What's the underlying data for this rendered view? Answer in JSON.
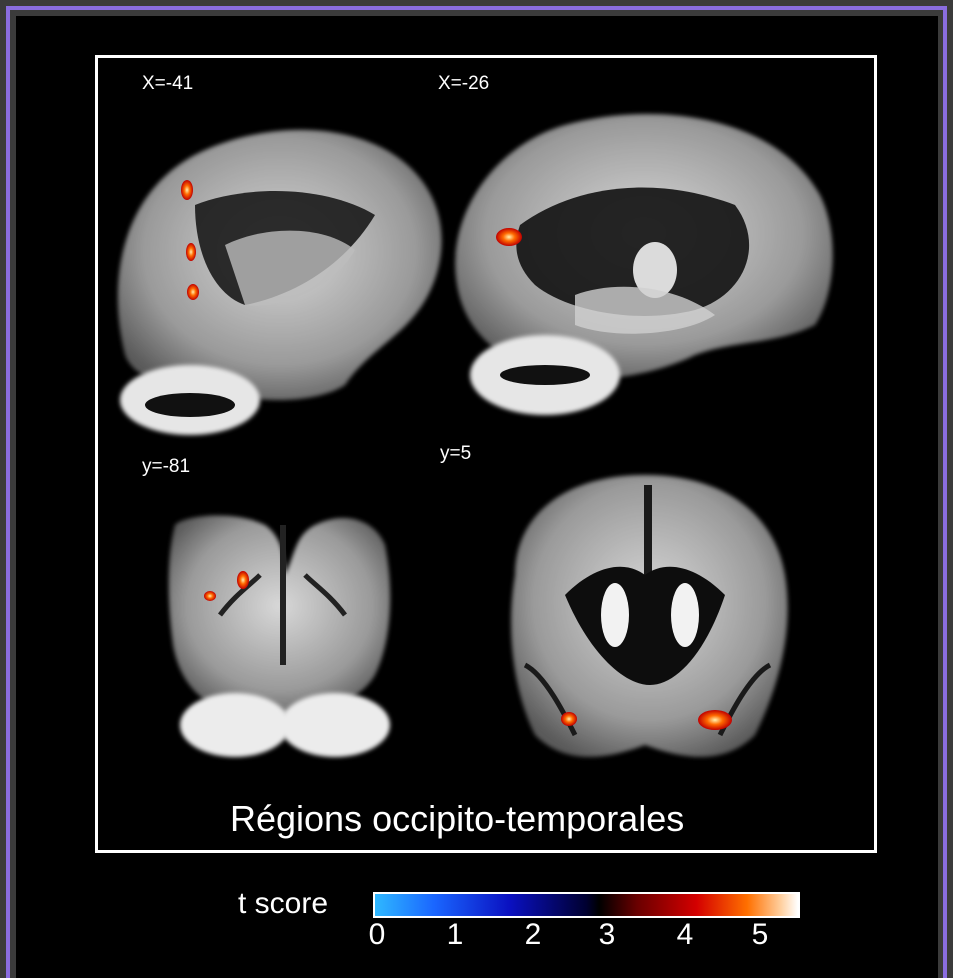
{
  "slices": [
    {
      "label": "X=-41",
      "view": "sagittal-left"
    },
    {
      "label": "X=-26",
      "view": "sagittal-medial"
    },
    {
      "label": "y=-81",
      "view": "coronal-posterior"
    },
    {
      "label": "y=5",
      "view": "coronal-anterior"
    }
  ],
  "caption": "Régions occipito-temporales",
  "colorbar": {
    "label": "t score",
    "ticks": [
      "0",
      "1",
      "2",
      "3",
      "4",
      "5"
    ],
    "gradient": [
      "#2fb8ff",
      "#0a10c0",
      "#000000",
      "#d40000",
      "#ff7000",
      "#ffffff"
    ]
  },
  "colors": {
    "frame": "#8a6de0",
    "background": "#000000",
    "activation": "#ff3000"
  }
}
